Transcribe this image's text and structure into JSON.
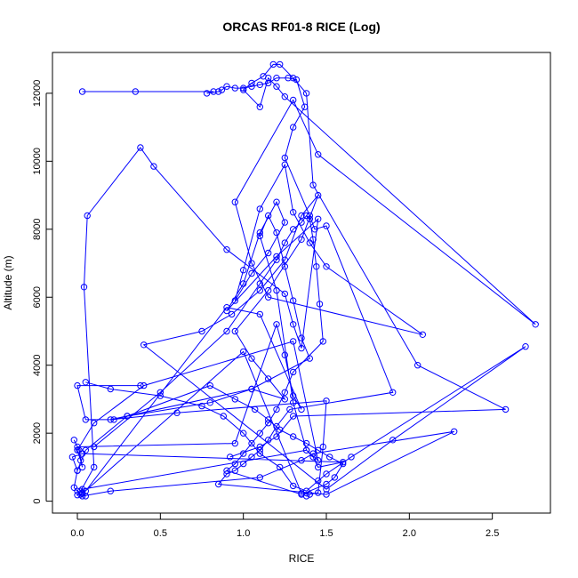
{
  "chart_data": {
    "type": "line",
    "title": "ORCAS RF01-8 RICE (Log)",
    "xlabel": "RICE",
    "ylabel": "Altitude (m)",
    "xlim": [
      -0.15,
      2.85
    ],
    "ylim": [
      -350,
      13200
    ],
    "xticks": [
      0.0,
      0.5,
      1.0,
      1.5,
      2.0,
      2.5
    ],
    "xtick_labels": [
      "0.0",
      "0.5",
      "1.0",
      "1.5",
      "2.0",
      "2.5"
    ],
    "yticks": [
      0,
      2000,
      4000,
      6000,
      8000,
      10000,
      12000
    ],
    "ytick_labels": [
      "0",
      "2000",
      "4000",
      "6000",
      "8000",
      "10000",
      "12000"
    ],
    "markers": "open-circle",
    "line_color": "#0000ff",
    "grid": false,
    "series": [
      {
        "x": [
          0.02,
          0.05,
          0.03,
          0.0,
          -0.02,
          0.0,
          -0.03,
          0.03,
          1.6,
          1.45,
          1.42,
          1.38,
          1.3,
          1.2,
          1.1,
          1.15,
          1.2,
          1.25,
          1.3,
          1.35,
          1.4,
          1.05,
          0.2,
          0.6,
          1.5,
          1.48,
          1.45,
          1.4,
          1.38,
          1.35,
          1.0,
          0.03,
          0.0,
          0.03,
          1.38,
          1.45,
          1.3,
          0.4,
          0.1,
          0.0,
          0.02,
          0.03,
          0.01,
          -0.02,
          0.0,
          0.95,
          1.2,
          1.25,
          1.3,
          1.35,
          1.1,
          0.9,
          0.05
        ],
        "y": [
          200,
          150,
          250,
          300,
          400,
          900,
          1300,
          1400,
          1150,
          1000,
          1300,
          1500,
          2900,
          6200,
          7800,
          8400,
          7900,
          6900,
          5900,
          4800,
          4200,
          3300,
          2400,
          2600,
          2950,
          1600,
          250,
          200,
          150,
          230,
          4400,
          220,
          180,
          350,
          1500,
          1200,
          4700,
          3400,
          2300,
          1500,
          1200,
          1000,
          1500,
          1800,
          1600,
          1700,
          5200,
          4300,
          3100,
          2700,
          5500,
          5700,
          300
        ]
      },
      {
        "x": [
          0.02,
          0.1,
          0.04,
          0.06,
          0.38,
          0.46,
          0.9,
          1.25,
          1.3,
          1.35,
          1.45,
          1.2,
          0.9,
          1.0,
          1.1,
          1.2,
          1.25,
          1.15,
          1.05,
          0.95,
          1.0,
          1.1,
          1.25,
          1.3,
          1.4,
          1.5,
          2.08,
          1.15,
          1.05,
          0.95,
          1.3,
          1.45,
          2.76,
          1.25,
          1.2,
          1.15,
          1.1,
          1.0,
          1.05,
          1.12,
          1.18,
          1.22,
          1.3,
          1.38,
          1.42,
          2.05,
          2.58,
          1.3,
          1.2,
          1.1,
          0.92
        ],
        "y": [
          300,
          1000,
          6300,
          8400,
          10400,
          9850,
          7400,
          6100,
          5200,
          4500,
          8300,
          7200,
          5600,
          6400,
          7900,
          8800,
          8200,
          7300,
          6700,
          5900,
          6800,
          8600,
          9900,
          8500,
          7600,
          6900,
          4900,
          6000,
          7000,
          8800,
          11800,
          10200,
          5200,
          11900,
          12200,
          12450,
          11600,
          12100,
          12300,
          12500,
          12850,
          12850,
          12450,
          12000,
          9300,
          4000,
          2700,
          2500,
          1900,
          1600,
          1300
        ]
      },
      {
        "x": [
          0.03,
          0.35,
          0.82,
          0.78,
          0.85,
          0.87,
          0.9,
          0.95,
          1.0,
          1.05,
          1.1,
          1.15,
          1.2,
          1.27,
          1.32,
          1.37,
          1.3,
          1.25,
          1.4,
          1.43,
          1.5,
          1.9,
          1.28,
          1.2,
          1.15,
          1.1,
          1.05,
          1.0,
          0.95,
          0.9,
          0.85,
          1.5,
          2.27,
          1.42,
          1.35,
          1.1,
          0.2,
          0.03
        ],
        "y": [
          12050,
          12050,
          12050,
          12000,
          12050,
          12100,
          12200,
          12150,
          12150,
          12200,
          12250,
          12300,
          12450,
          12450,
          12400,
          11600,
          11000,
          10100,
          8400,
          8000,
          8100,
          3200,
          2700,
          2200,
          1800,
          1500,
          1300,
          1100,
          900,
          800,
          500,
          200,
          2050,
          1400,
          1200,
          700,
          300,
          150
        ]
      },
      {
        "x": [
          0.38,
          0.0,
          0.05,
          0.22,
          0.3,
          0.8,
          1.05,
          1.25,
          1.15,
          1.05,
          0.95,
          1.15,
          1.35,
          1.45,
          1.35,
          1.25,
          1.1,
          0.93,
          0.75,
          0.4,
          1.5,
          1.9,
          2.7,
          1.65,
          1.5,
          1.45,
          1.38,
          1.3,
          1.22,
          1.1,
          1.0,
          0.88,
          0.75,
          0.5,
          0.2,
          0.05
        ],
        "y": [
          3400,
          3400,
          2400,
          2400,
          2500,
          2900,
          3300,
          3000,
          3600,
          4200,
          5000,
          6200,
          7700,
          9000,
          8400,
          7100,
          6200,
          5500,
          5000,
          4600,
          350,
          1800,
          4550,
          1300,
          800,
          600,
          300,
          450,
          1000,
          1400,
          2000,
          2500,
          2800,
          3100,
          3300,
          3500
        ]
      },
      {
        "x": [
          0.1,
          0.5,
          0.9,
          1.1,
          1.2,
          1.25,
          1.3,
          1.35,
          1.38,
          1.4,
          1.42,
          1.44,
          1.46,
          1.48,
          1.3,
          1.25,
          1.2,
          1.15,
          1.1,
          1.05,
          1.0,
          0.95,
          0.9,
          1.35,
          1.5,
          1.55,
          1.6,
          1.52,
          1.45,
          1.38,
          1.3,
          1.22,
          1.15,
          1.07,
          0.95,
          0.8,
          0.3,
          0.05,
          0.0
        ],
        "y": [
          1600,
          3200,
          5000,
          6400,
          7100,
          7600,
          8000,
          8200,
          8400,
          8300,
          7700,
          6900,
          5800,
          4700,
          3800,
          3200,
          2700,
          2300,
          2000,
          1700,
          1400,
          1100,
          900,
          200,
          500,
          700,
          1100,
          1300,
          1500,
          1700,
          1900,
          2100,
          2400,
          2700,
          3000,
          3400,
          2500,
          1500,
          900
        ]
      }
    ]
  }
}
